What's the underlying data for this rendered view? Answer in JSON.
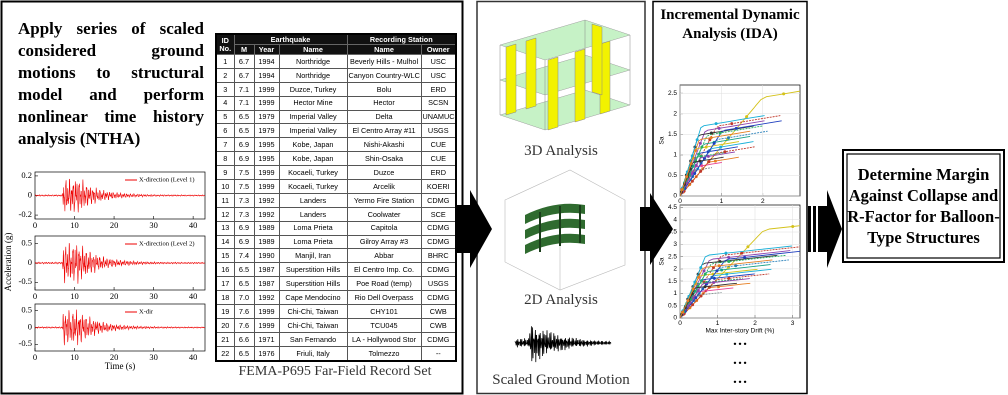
{
  "ntha_panel": {
    "heading": "Apply series of scaled considered ground motions to structural model and perform nonlinear time history analysis (NTHA)",
    "y_label": "Acceleration (g)",
    "x_label": "Time (s)",
    "plots": [
      {
        "legend": "X-direction (Level 1)",
        "xlim": [
          0,
          43
        ],
        "ylim": [
          -0.24,
          0.24
        ],
        "yticks": [
          0.2,
          0,
          -0.2
        ],
        "xticks": [
          0,
          10,
          20,
          30,
          40
        ]
      },
      {
        "legend": "X-direction (Level 2)",
        "xlim": [
          0,
          43
        ],
        "ylim": [
          -0.7,
          0.7
        ],
        "yticks": [
          0.5,
          0,
          -0.5
        ],
        "xticks": [
          0,
          10,
          20,
          30,
          40
        ]
      },
      {
        "legend": "X-dir",
        "xlim": [
          0,
          43
        ],
        "ylim": [
          -0.7,
          0.7
        ],
        "yticks": [
          0.5,
          0,
          -0.5
        ],
        "xticks": [
          0,
          10,
          20,
          30,
          40
        ]
      }
    ]
  },
  "table": {
    "group_headers": [
      "ID No.",
      "Earthquake",
      "Recording Station"
    ],
    "sub_headers": [
      "M",
      "Year",
      "Name",
      "Name",
      "Owner"
    ],
    "rows": [
      [
        "1",
        "6.7",
        "1994",
        "Northridge",
        "Beverly Hills - Mulhol",
        "USC"
      ],
      [
        "2",
        "6.7",
        "1994",
        "Northridge",
        "Canyon Country-WLC",
        "USC"
      ],
      [
        "3",
        "7.1",
        "1999",
        "Duzce, Turkey",
        "Bolu",
        "ERD"
      ],
      [
        "4",
        "7.1",
        "1999",
        "Hector Mine",
        "Hector",
        "SCSN"
      ],
      [
        "5",
        "6.5",
        "1979",
        "Imperial Valley",
        "Delta",
        "UNAMUCSD"
      ],
      [
        "6",
        "6.5",
        "1979",
        "Imperial Valley",
        "El Centro Array #11",
        "USGS"
      ],
      [
        "7",
        "6.9",
        "1995",
        "Kobe, Japan",
        "Nishi-Akashi",
        "CUE"
      ],
      [
        "8",
        "6.9",
        "1995",
        "Kobe, Japan",
        "Shin-Osaka",
        "CUE"
      ],
      [
        "9",
        "7.5",
        "1999",
        "Kocaeli, Turkey",
        "Duzce",
        "ERD"
      ],
      [
        "10",
        "7.5",
        "1999",
        "Kocaeli, Turkey",
        "Arcelik",
        "KOERI"
      ],
      [
        "11",
        "7.3",
        "1992",
        "Landers",
        "Yermo Fire Station",
        "CDMG"
      ],
      [
        "12",
        "7.3",
        "1992",
        "Landers",
        "Coolwater",
        "SCE"
      ],
      [
        "13",
        "6.9",
        "1989",
        "Loma Prieta",
        "Capitola",
        "CDMG"
      ],
      [
        "14",
        "6.9",
        "1989",
        "Loma Prieta",
        "Gilroy Array #3",
        "CDMG"
      ],
      [
        "15",
        "7.4",
        "1990",
        "Manjil, Iran",
        "Abbar",
        "BHRC"
      ],
      [
        "16",
        "6.5",
        "1987",
        "Superstition Hills",
        "El Centro Imp. Co.",
        "CDMG"
      ],
      [
        "17",
        "6.5",
        "1987",
        "Superstition Hills",
        "Poe Road (temp)",
        "USGS"
      ],
      [
        "18",
        "7.0",
        "1992",
        "Cape Mendocino",
        "Rio Dell Overpass",
        "CDMG"
      ],
      [
        "19",
        "7.6",
        "1999",
        "Chi-Chi, Taiwan",
        "CHY101",
        "CWB"
      ],
      [
        "20",
        "7.6",
        "1999",
        "Chi-Chi, Taiwan",
        "TCU045",
        "CWB"
      ],
      [
        "21",
        "6.6",
        "1971",
        "San Fernando",
        "LA - Hollywood Stor",
        "CDMG"
      ],
      [
        "22",
        "6.5",
        "1976",
        "Friuli, Italy",
        "Tolmezzo",
        "--"
      ]
    ],
    "caption": "FEMA-P695 Far-Field Record Set"
  },
  "analysis_panel": {
    "captions": [
      "3D Analysis",
      "2D Analysis",
      "Scaled Ground Motion"
    ]
  },
  "ida_panel": {
    "title": "Incremental Dynamic Analysis (IDA)",
    "plots": [
      {
        "y_label": "Sa",
        "xlim": [
          0,
          2.9
        ],
        "ylim": [
          0,
          2.7
        ],
        "yticks": [
          0,
          0.5,
          1,
          1.5,
          2,
          2.5
        ],
        "xticks": [
          0,
          1,
          2
        ]
      },
      {
        "y_label": "Sa",
        "x_label": "Max Inter-story Drift (%)",
        "xlim": [
          0,
          3.2
        ],
        "ylim": [
          0,
          4.6
        ],
        "yticks": [
          0,
          0.5,
          1,
          1.5,
          2,
          2.5,
          3,
          3.5,
          4,
          4.5
        ],
        "xticks": [
          0,
          1,
          2,
          3
        ]
      }
    ],
    "ellipsis": [
      "…",
      "…",
      "…"
    ]
  },
  "result": {
    "text": "Determine Margin Against Collapse and R-Factor for Balloon-Type Structures"
  }
}
